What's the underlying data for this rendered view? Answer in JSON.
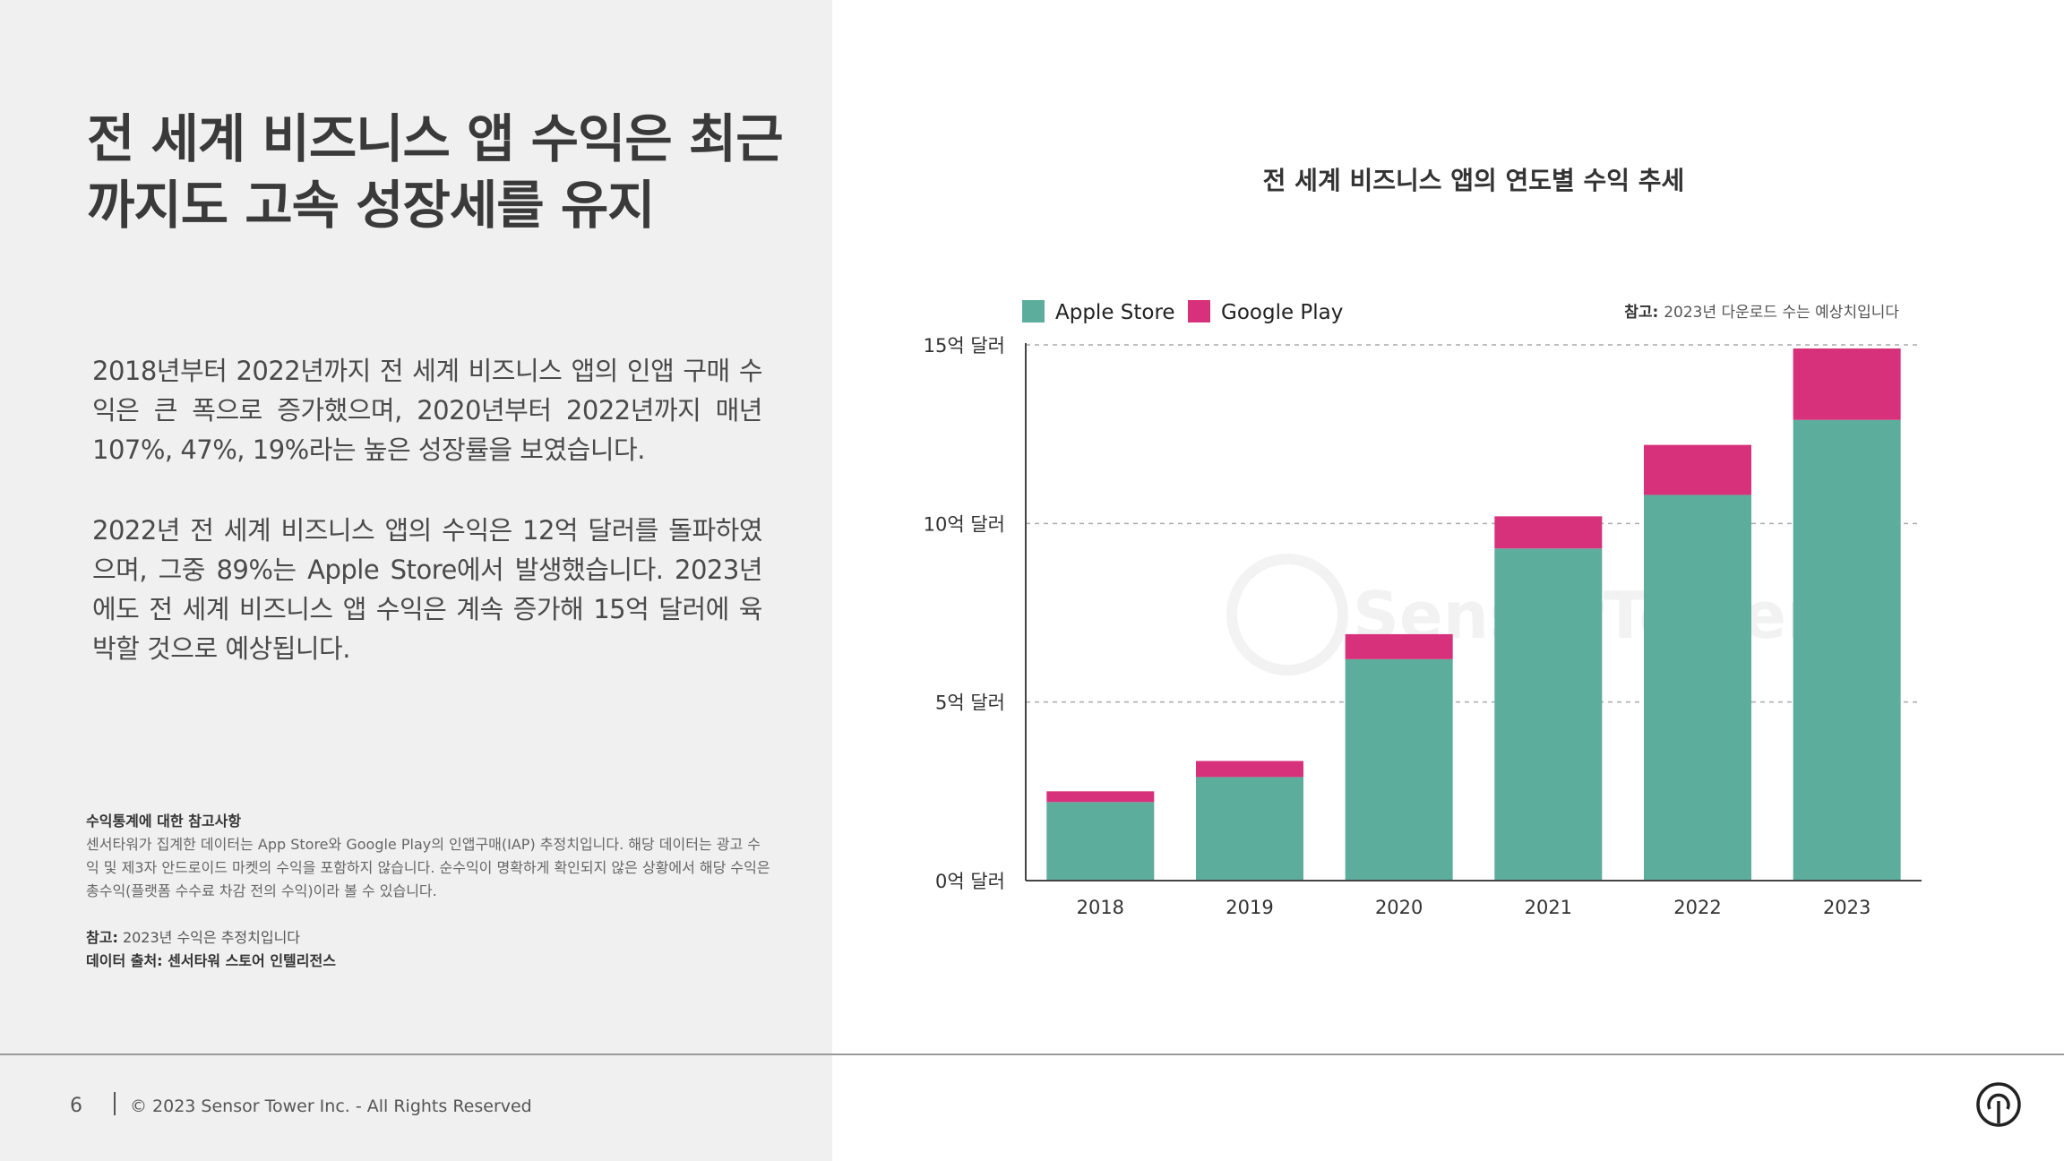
{
  "headline": {
    "line1": "전 세계 비즈니스 앱 수익은 최근",
    "line2": "까지도 고속 성장세를 유지"
  },
  "body": {
    "paragraph1": "2018년부터 2022년까지 전 세계 비즈니스 앱의 인앱 구매 수익은 큰 폭으로 증가했으며, 2020년부터 2022년까지 매년 107%, 47%, 19%라는 높은 성장률을 보였습니다.",
    "paragraph2": "2022년 전 세계 비즈니스 앱의 수익은 12억 달러를 돌파하였으며, 그중 89%는 Apple Store에서 발생했습니다. 2023년에도 전 세계 비즈니스 앱 수익은 계속 증가해 15억 달러에 육박할 것으로 예상됩니다."
  },
  "notes": {
    "title": "수익통계에 대한 참고사항",
    "body": "센서타워가 집계한 데이터는 App Store와 Google Play의 인앱구매(IAP) 추정치입니다. 해당 데이터는 광고 수익 및 제3자 안드로이드 마켓의 수익을 포함하지 않습니다. 순수익이 명확하게 확인되지 않은 상황에서 해당 수익은 총수익(플랫폼 수수료 차감 전의 수익)이라 볼 수 있습니다.",
    "ref_label": "참고:",
    "ref_text": "2023년 수익은 추정치입니다",
    "source": "데이터 출처: 센서타워 스토어 인텔리전스"
  },
  "footer": {
    "page_number": "6",
    "copyright": "© 2023 Sensor Tower Inc. - All Rights Reserved"
  },
  "watermark": "SensorTower",
  "chart_data": {
    "type": "bar",
    "stacked": true,
    "title": "전 세계 비즈니스 앱의 연도별 수익 추세",
    "note_label": "참고:",
    "note_text": "2023년 다운로드 수는 예상치입니다",
    "categories": [
      "2018",
      "2019",
      "2020",
      "2021",
      "2022",
      "2023"
    ],
    "series": [
      {
        "name": "Apple Store",
        "color": "#5dad9c",
        "values": [
          2.2,
          2.9,
          6.2,
          9.3,
          10.8,
          12.9
        ]
      },
      {
        "name": "Google Play",
        "color": "#d6317a",
        "values": [
          0.3,
          0.45,
          0.7,
          0.9,
          1.4,
          2.0
        ]
      }
    ],
    "ylim": [
      0,
      15
    ],
    "yticks": [
      {
        "value": 0,
        "label": "0억 달러"
      },
      {
        "value": 5,
        "label": "5억 달러"
      },
      {
        "value": 10,
        "label": "10억 달러"
      },
      {
        "value": 15,
        "label": "15억 달러"
      }
    ],
    "grid": true,
    "legend_position": "top-left"
  }
}
